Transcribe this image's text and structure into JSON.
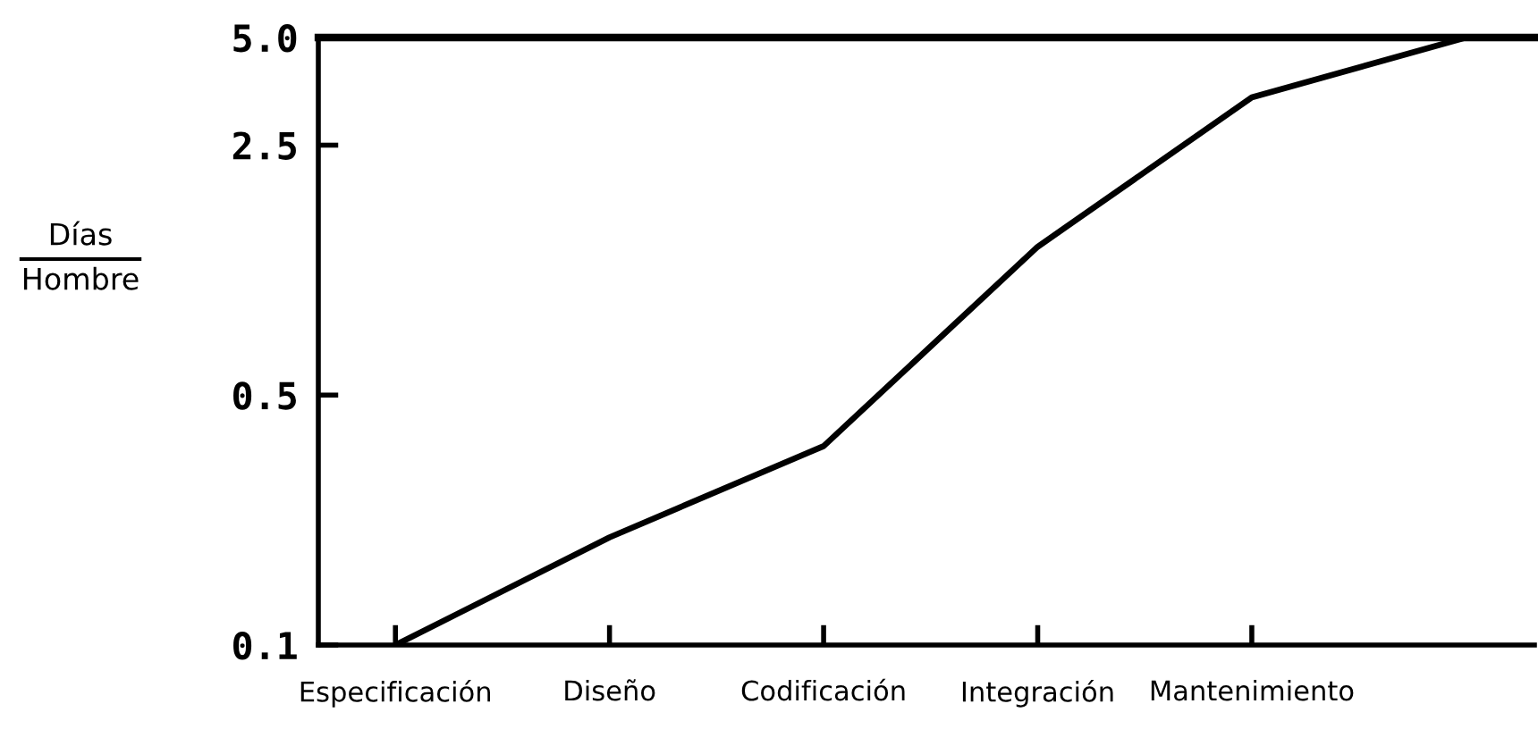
{
  "chart_data": {
    "type": "line",
    "categories": [
      "Especificación",
      "Diseño",
      "Codificación",
      "Integración",
      "Mantenimiento",
      null
    ],
    "series": [
      {
        "color": "#000000",
        "values": [
          0.1,
          0.2,
          0.36,
          1.3,
          3.4,
          5.0
        ]
      }
    ],
    "ylabel": "Días\nHombre",
    "log": true,
    "ylim": [
      0.1,
      5.0
    ],
    "yticks": [
      0.1,
      0.5,
      2.5,
      {
        "value": 5,
        "label": "5.0"
      }
    ],
    "line_style": "solid"
  }
}
